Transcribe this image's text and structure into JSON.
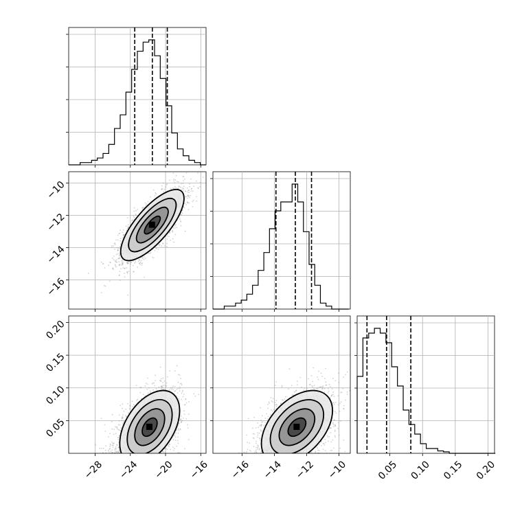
{
  "chart_data": {
    "type": "corner",
    "grid": true,
    "params": [
      {
        "range": [
          -31,
          -15.4
        ],
        "ticks": [
          -28,
          -24,
          -20,
          -16
        ],
        "tick_labels": [
          "−28",
          "−24",
          "−20",
          "−16"
        ]
      },
      {
        "range": [
          -17.8,
          -9.3
        ],
        "ticks": [
          -16,
          -14,
          -12,
          -10
        ],
        "tick_labels": [
          "−16",
          "−14",
          "−12",
          "−10"
        ]
      },
      {
        "range": [
          0.0,
          0.21
        ],
        "ticks": [
          0.05,
          0.1,
          0.15,
          0.2
        ],
        "tick_labels": [
          "0.05",
          "0.10",
          "0.15",
          "0.20"
        ]
      }
    ],
    "quantiles": [
      [
        -23.5,
        -21.5,
        -19.8
      ],
      [
        -13.9,
        -12.7,
        -11.7
      ],
      [
        0.015,
        0.045,
        0.082
      ]
    ],
    "histograms": [
      {
        "bin_start": -31,
        "bin_width": 0.65,
        "ymax": 0.28,
        "ytick_fraction": [
          0.25,
          0.5,
          0.75,
          1.0
        ],
        "counts": [
          0,
          0,
          0.01,
          0.01,
          0.02,
          0.03,
          0.05,
          0.09,
          0.16,
          0.22,
          0.32,
          0.42,
          0.5,
          0.54,
          0.55,
          0.48,
          0.38,
          0.26,
          0.14,
          0.07,
          0.04,
          0.02,
          0.01,
          0
        ]
      },
      {
        "bin_start": -17.8,
        "bin_width": 0.35,
        "ymax": 0.3,
        "ytick_fraction": [
          0.25,
          0.5,
          0.75,
          1.0
        ],
        "counts": [
          0,
          0,
          0.01,
          0.01,
          0.02,
          0.03,
          0.05,
          0.08,
          0.13,
          0.19,
          0.27,
          0.33,
          0.36,
          0.36,
          0.42,
          0.36,
          0.26,
          0.15,
          0.08,
          0.02,
          0.01,
          0,
          0,
          0
        ]
      },
      {
        "bin_start": 0.0,
        "bin_width": 0.0088,
        "ymax": 0.3,
        "ytick_fraction": [
          0.25,
          0.5,
          0.75,
          1.0
        ],
        "counts": [
          0.16,
          0.24,
          0.25,
          0.26,
          0.25,
          0.23,
          0.18,
          0.14,
          0.09,
          0.06,
          0.04,
          0.02,
          0.01,
          0.01,
          0.005,
          0.003,
          0,
          0,
          0,
          0,
          0,
          0,
          0,
          0
        ]
      }
    ],
    "pairs": [
      {
        "x_param": 0,
        "y_param": 1,
        "center": [
          -21.5,
          -12.6
        ],
        "sigma": [
          1.8,
          1.1
        ],
        "correlation": 0.75,
        "samples": 2500
      },
      {
        "x_param": 0,
        "y_param": 2,
        "center": [
          -21.8,
          0.04
        ],
        "sigma": [
          1.7,
          0.028
        ],
        "correlation": 0.45,
        "samples": 2500
      },
      {
        "x_param": 1,
        "y_param": 2,
        "center": [
          -12.6,
          0.04
        ],
        "sigma": [
          1.1,
          0.028
        ],
        "correlation": 0.45,
        "samples": 2500
      }
    ],
    "contour_levels_sigma": [
      0.5,
      1.0,
      1.5,
      2.0
    ]
  }
}
